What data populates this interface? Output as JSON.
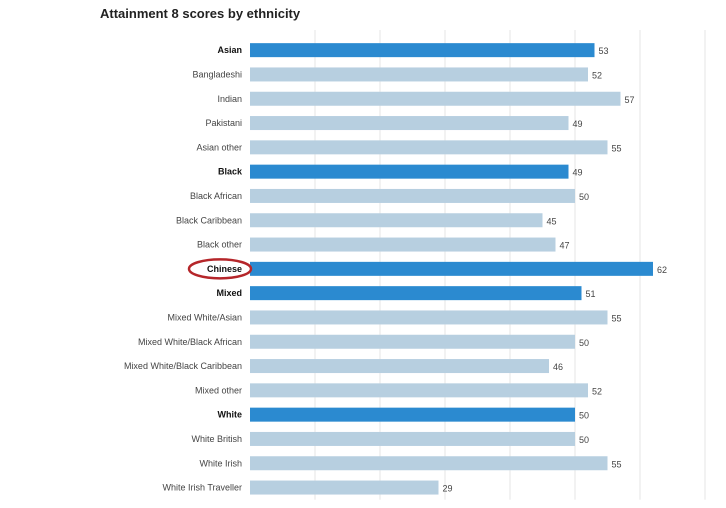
{
  "chart_data": {
    "type": "bar",
    "orientation": "horizontal",
    "title": "Attainment 8 scores by ethnicity",
    "xlabel": "",
    "ylabel": "",
    "xlim": [
      0,
      70
    ],
    "grid": true,
    "colors": {
      "group": "#2b8ad0",
      "subgroup": "#b7cfe0",
      "highlight_ring": "#b5262a"
    },
    "categories": [
      "Asian",
      "Bangladeshi",
      "Indian",
      "Pakistani",
      "Asian other",
      "Black",
      "Black African",
      "Black Caribbean",
      "Black other",
      "Chinese",
      "Mixed",
      "Mixed White/Asian",
      "Mixed White/Black African",
      "Mixed White/Black Caribbean",
      "Mixed other",
      "White",
      "White British",
      "White Irish",
      "White Irish Traveller"
    ],
    "values": [
      53,
      52,
      57,
      49,
      55,
      49,
      50,
      45,
      47,
      62,
      51,
      55,
      50,
      46,
      52,
      50,
      50,
      55,
      29
    ],
    "is_group": [
      true,
      false,
      false,
      false,
      false,
      true,
      false,
      false,
      false,
      true,
      true,
      false,
      false,
      false,
      false,
      true,
      false,
      false,
      false
    ],
    "highlighted": "Chinese"
  }
}
